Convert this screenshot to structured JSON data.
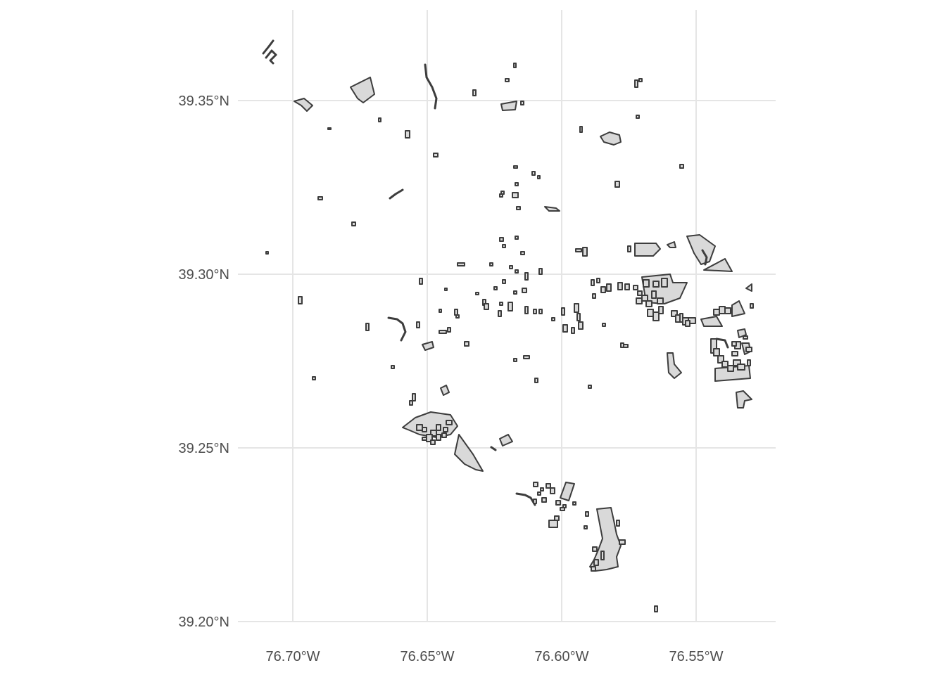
{
  "map": {
    "x_ticks": [
      {
        "value": -76.7,
        "label": "76.70°W"
      },
      {
        "value": -76.65,
        "label": "76.65°W"
      },
      {
        "value": -76.6,
        "label": "76.60°W"
      },
      {
        "value": -76.55,
        "label": "76.55°W"
      }
    ],
    "y_ticks": [
      {
        "value": 39.35,
        "label": "39.35°N"
      },
      {
        "value": 39.3,
        "label": "39.30°N"
      },
      {
        "value": 39.25,
        "label": "39.25°N"
      },
      {
        "value": 39.2,
        "label": "39.20°N"
      }
    ],
    "colors": {
      "grid": "#e5e5e5",
      "parcel_fill": "#d9d9d9",
      "parcel_stroke": "#3d3d3d",
      "tick_text": "#4d4d4d",
      "background": "#ffffff"
    }
  }
}
